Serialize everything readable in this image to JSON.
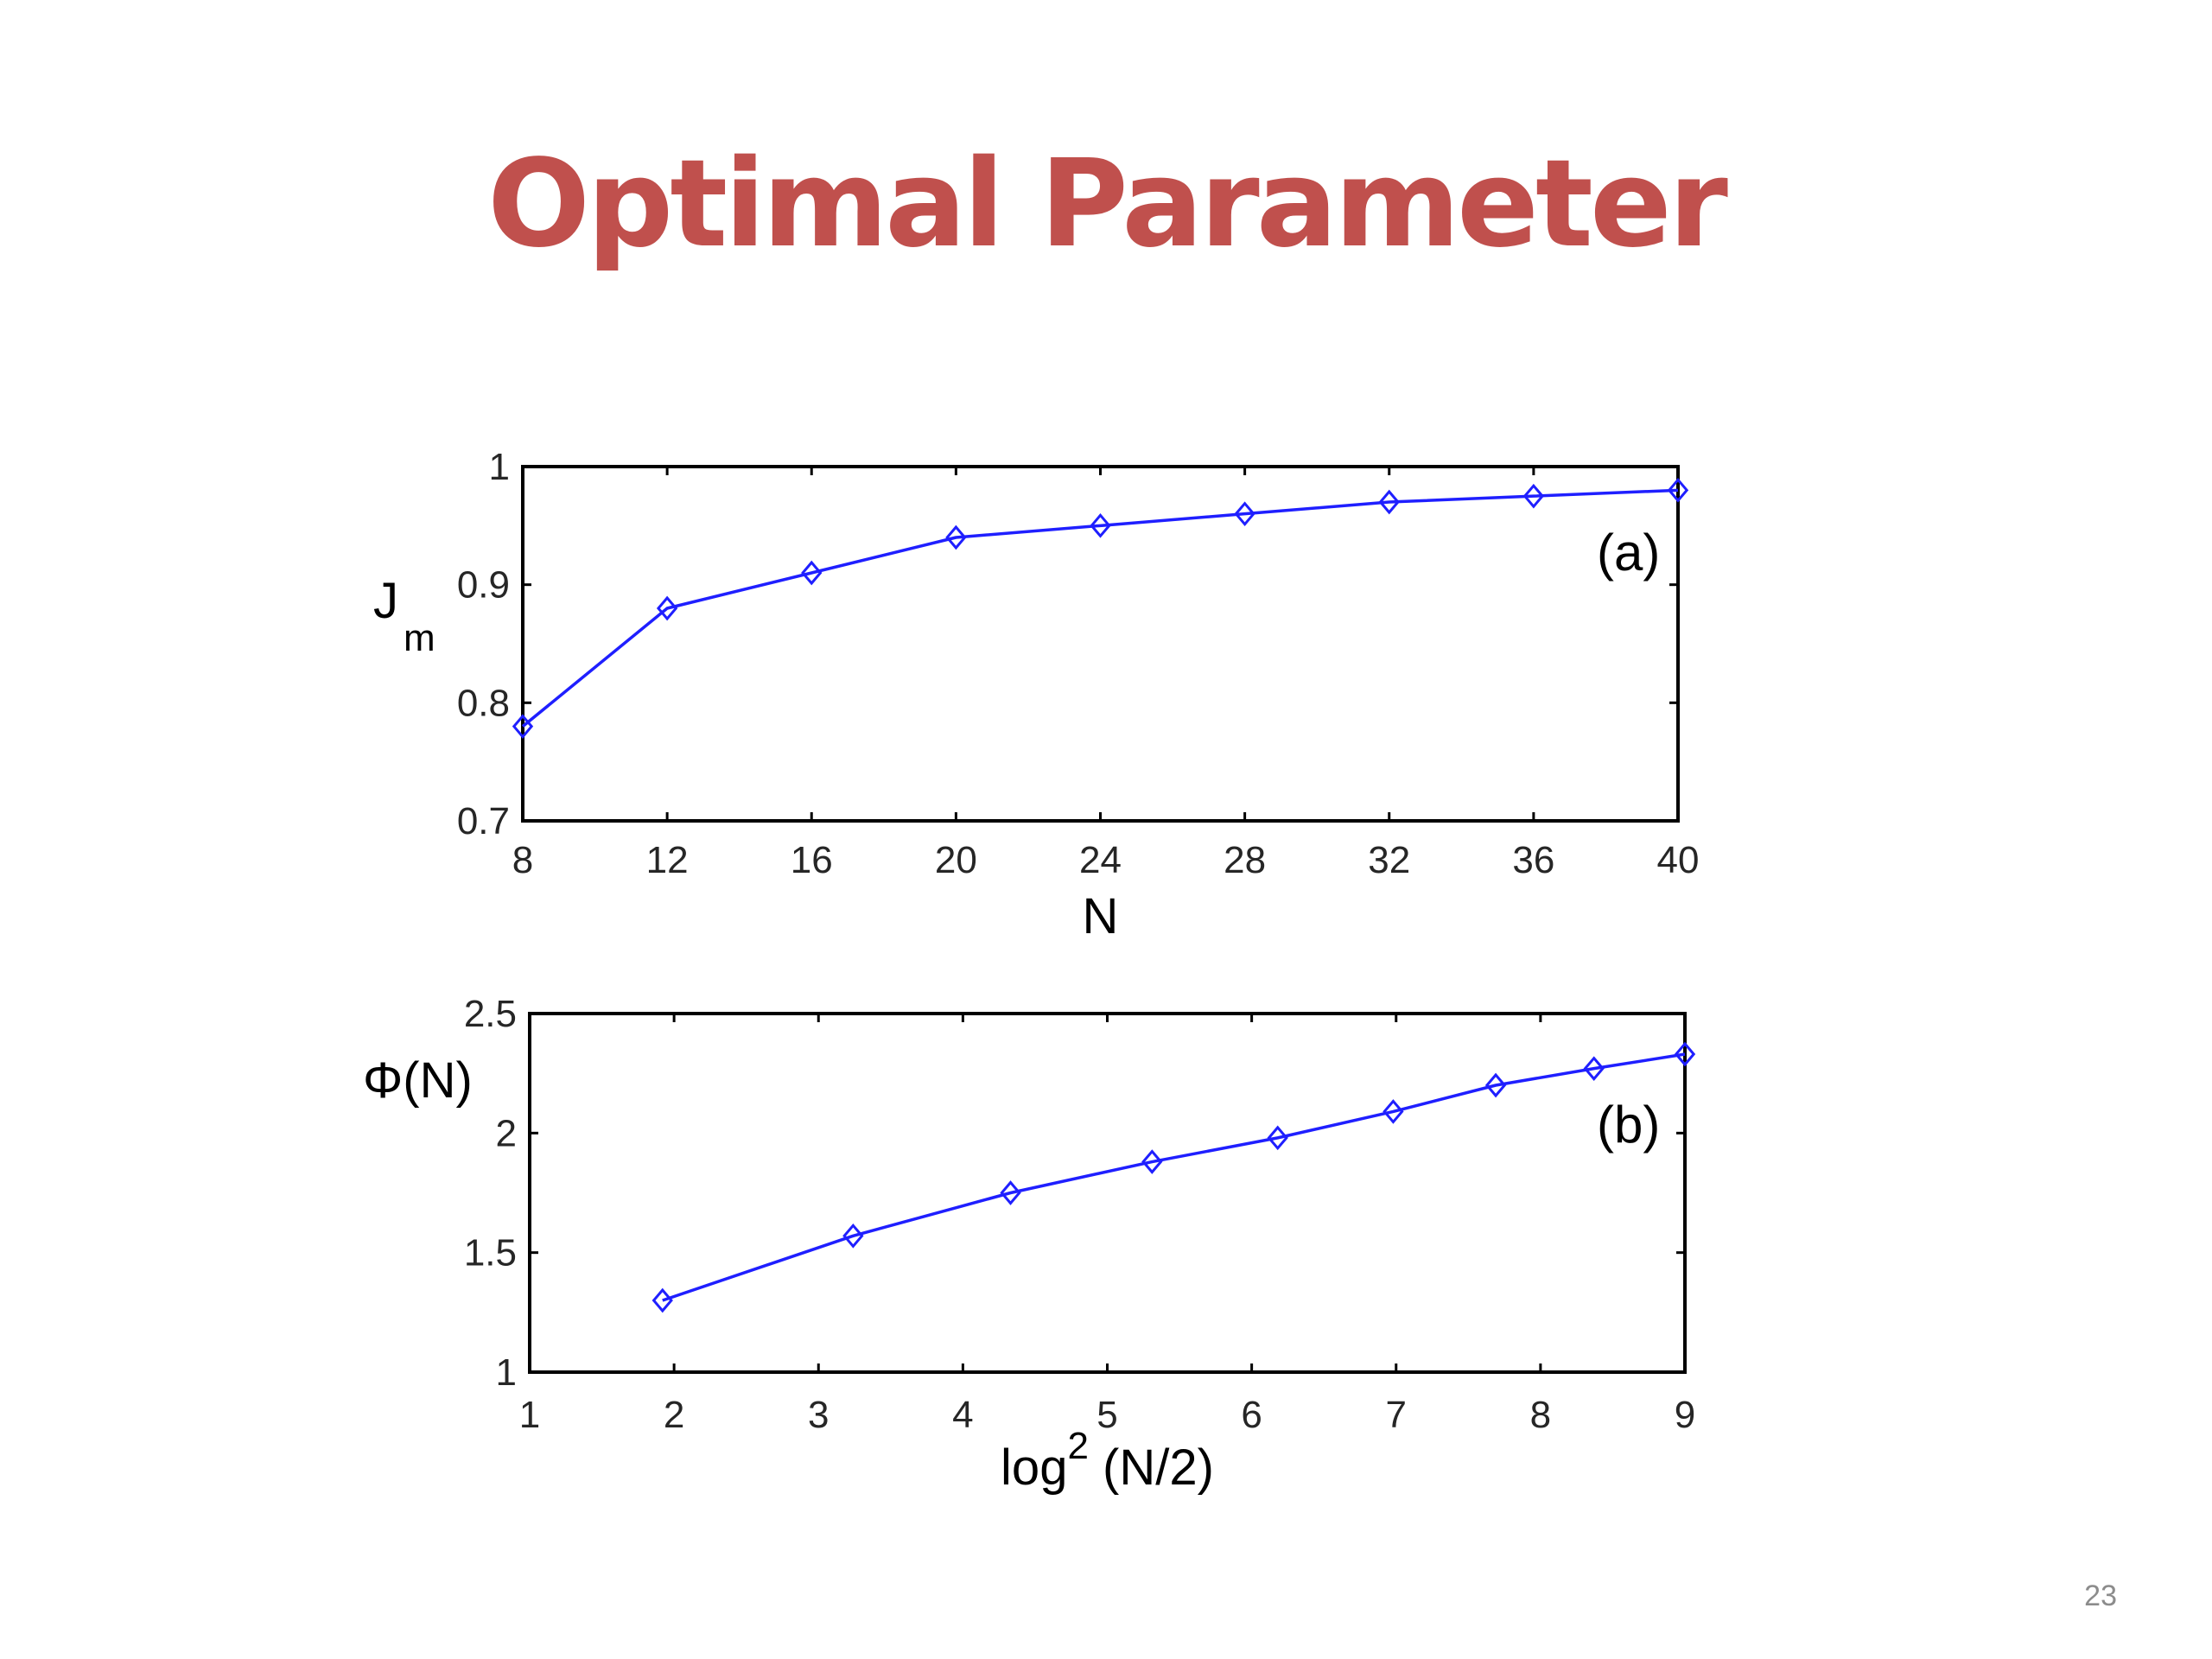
{
  "slide": {
    "title": "Optimal Parameter",
    "page_number": "23"
  },
  "colors": {
    "title": "#c0504d",
    "series": "#1f1fff",
    "axes": "#000000"
  },
  "chart_data": [
    {
      "type": "line",
      "panel_label": "(a)",
      "ylabel": "J",
      "ylabel_sub": "m",
      "xlabel": "N",
      "xlabel_sup": "",
      "xlabel_suffix": "",
      "xlim": [
        8,
        40
      ],
      "ylim": [
        0.7,
        1
      ],
      "xticks": [
        8,
        12,
        16,
        20,
        24,
        28,
        32,
        36,
        40
      ],
      "xtick_labels": [
        "8",
        "12",
        "16",
        "20",
        "24",
        "28",
        "32",
        "36",
        "40"
      ],
      "yticks": [
        0.7,
        0.8,
        0.9,
        1
      ],
      "ytick_labels": [
        "0.7",
        "0.8",
        "0.9",
        "1"
      ],
      "marker": "diamond",
      "grid": false,
      "series": [
        {
          "x": [
            8,
            12,
            16,
            20,
            24,
            28,
            32,
            36,
            40
          ],
          "y": [
            0.78,
            0.88,
            0.91,
            0.94,
            0.95,
            0.96,
            0.97,
            0.975,
            0.98
          ]
        }
      ]
    },
    {
      "type": "line",
      "panel_label": "(b)",
      "ylabel": "Φ(N)",
      "ylabel_sub": "",
      "xlabel": "log",
      "xlabel_sup": "2",
      "xlabel_suffix": " (N/2)",
      "xlim": [
        1,
        9
      ],
      "ylim": [
        1,
        2.5
      ],
      "xticks": [
        1,
        2,
        3,
        4,
        5,
        6,
        7,
        8,
        9
      ],
      "xtick_labels": [
        "1",
        "2",
        "3",
        "4",
        "5",
        "6",
        "7",
        "8",
        "9"
      ],
      "yticks": [
        1,
        1.5,
        2,
        2.5
      ],
      "ytick_labels": [
        "1",
        "1.5",
        "2",
        "2.5"
      ],
      "marker": "diamond",
      "grid": false,
      "series": [
        {
          "x": [
            1.92,
            3.24,
            4.33,
            5.31,
            6.18,
            6.98,
            7.69,
            8.37,
            9.0
          ],
          "y": [
            1.3,
            1.57,
            1.75,
            1.88,
            1.98,
            2.09,
            2.2,
            2.27,
            2.33
          ]
        }
      ]
    }
  ]
}
